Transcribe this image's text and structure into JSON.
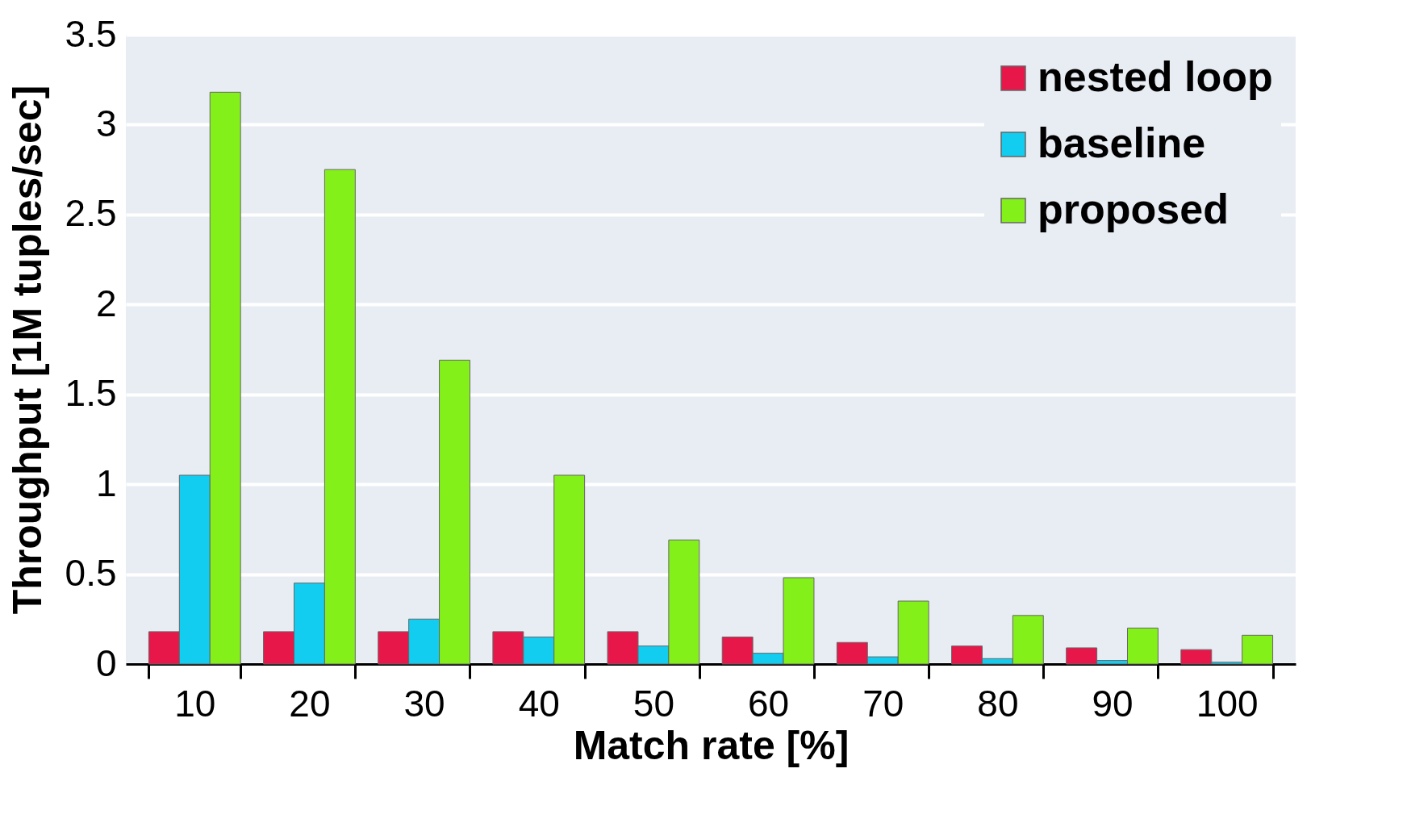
{
  "chart_data": {
    "type": "bar",
    "xlabel": "Match rate [%]",
    "ylabel": "Throughput [1M tuples/sec]",
    "categories": [
      "10",
      "20",
      "30",
      "40",
      "50",
      "60",
      "70",
      "80",
      "90",
      "100"
    ],
    "series": [
      {
        "name": "nested loop",
        "color": "#e8174a",
        "values": [
          0.18,
          0.18,
          0.18,
          0.18,
          0.18,
          0.15,
          0.12,
          0.1,
          0.09,
          0.08
        ]
      },
      {
        "name": "baseline",
        "color": "#12cdf0",
        "values": [
          1.05,
          0.45,
          0.25,
          0.15,
          0.1,
          0.06,
          0.04,
          0.03,
          0.02,
          0.01
        ]
      },
      {
        "name": "proposed",
        "color": "#84f01a",
        "values": [
          3.18,
          2.75,
          1.69,
          1.05,
          0.69,
          0.48,
          0.35,
          0.27,
          0.2,
          0.16
        ]
      }
    ],
    "ylim": [
      0,
      3.5
    ],
    "yticks": [
      0,
      0.5,
      1,
      1.5,
      2,
      2.5,
      3,
      3.5
    ],
    "grid": "y",
    "legend": "top right"
  }
}
